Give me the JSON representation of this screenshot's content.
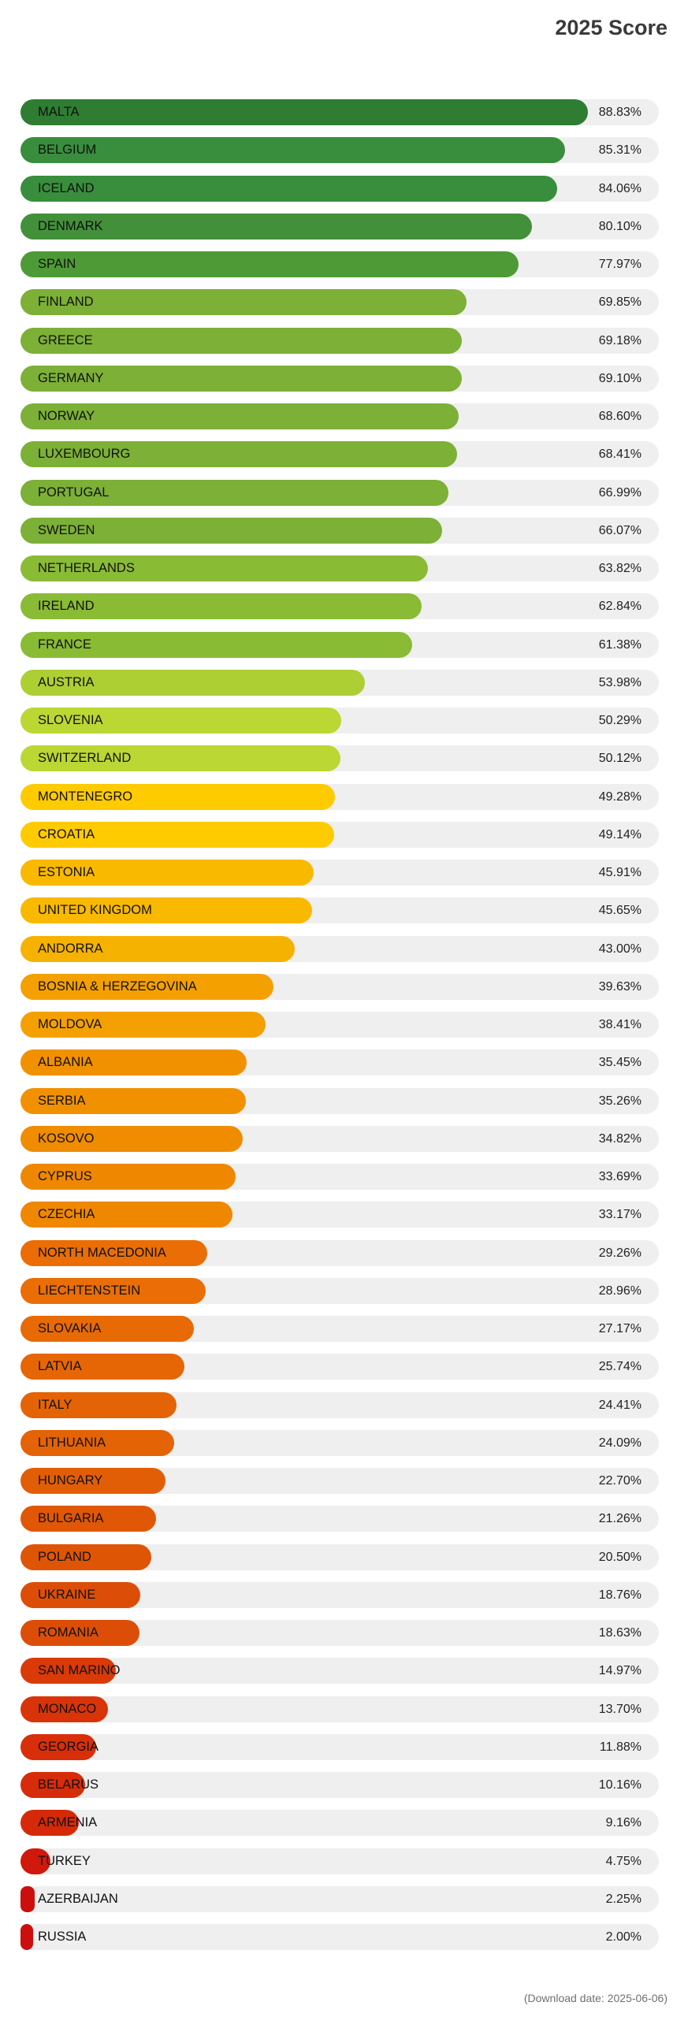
{
  "title": "2025 Score",
  "footnote": "(Download date: 2025-06-06)",
  "chart_data": {
    "type": "bar",
    "orientation": "horizontal",
    "title": "2025 Score",
    "xlim": [
      0,
      100
    ],
    "categories": [
      "MALTA",
      "BELGIUM",
      "ICELAND",
      "DENMARK",
      "SPAIN",
      "FINLAND",
      "GREECE",
      "GERMANY",
      "NORWAY",
      "LUXEMBOURG",
      "PORTUGAL",
      "SWEDEN",
      "NETHERLANDS",
      "IRELAND",
      "FRANCE",
      "AUSTRIA",
      "SLOVENIA",
      "SWITZERLAND",
      "MONTENEGRO",
      "CROATIA",
      "ESTONIA",
      "UNITED KINGDOM",
      "ANDORRA",
      "BOSNIA & HERZEGOVINA",
      "MOLDOVA",
      "ALBANIA",
      "SERBIA",
      "KOSOVO",
      "CYPRUS",
      "CZECHIA",
      "NORTH MACEDONIA",
      "LIECHTENSTEIN",
      "SLOVAKIA",
      "LATVIA",
      "ITALY",
      "LITHUANIA",
      "HUNGARY",
      "BULGARIA",
      "POLAND",
      "UKRAINE",
      "ROMANIA",
      "SAN MARINO",
      "MONACO",
      "GEORGIA",
      "BELARUS",
      "ARMENIA",
      "TURKEY",
      "AZERBAIJAN",
      "RUSSIA"
    ],
    "values": [
      88.83,
      85.31,
      84.06,
      80.1,
      77.97,
      69.85,
      69.18,
      69.1,
      68.6,
      68.41,
      66.99,
      66.07,
      63.82,
      62.84,
      61.38,
      53.98,
      50.29,
      50.12,
      49.28,
      49.14,
      45.91,
      45.65,
      43.0,
      39.63,
      38.41,
      35.45,
      35.26,
      34.82,
      33.69,
      33.17,
      29.26,
      28.96,
      27.17,
      25.74,
      24.41,
      24.09,
      22.7,
      21.26,
      20.5,
      18.76,
      18.63,
      14.97,
      13.7,
      11.88,
      10.16,
      9.16,
      4.75,
      2.25,
      2.0
    ],
    "value_labels": [
      "88.83%",
      "85.31%",
      "84.06%",
      "80.10%",
      "77.97%",
      "69.85%",
      "69.18%",
      "69.10%",
      "68.60%",
      "68.41%",
      "66.99%",
      "66.07%",
      "63.82%",
      "62.84%",
      "61.38%",
      "53.98%",
      "50.29%",
      "50.12%",
      "49.28%",
      "49.14%",
      "45.91%",
      "45.65%",
      "43.00%",
      "39.63%",
      "38.41%",
      "35.45%",
      "35.26%",
      "34.82%",
      "33.69%",
      "33.17%",
      "29.26%",
      "28.96%",
      "27.17%",
      "25.74%",
      "24.41%",
      "24.09%",
      "22.70%",
      "21.26%",
      "20.50%",
      "18.76%",
      "18.63%",
      "14.97%",
      "13.70%",
      "11.88%",
      "10.16%",
      "9.16%",
      "4.75%",
      "2.25%",
      "2.00%"
    ],
    "colors": [
      "#2e7d32",
      "#388e3c",
      "#388e3c",
      "#43903a",
      "#4e9a36",
      "#7cb036",
      "#7cb036",
      "#7cb036",
      "#7cb036",
      "#7cb036",
      "#7cb036",
      "#7cb036",
      "#8abb35",
      "#8abb35",
      "#8abb35",
      "#aecf33",
      "#bbd733",
      "#bbd733",
      "#fecb00",
      "#fecb00",
      "#f8b900",
      "#f8b900",
      "#f6b200",
      "#f4a000",
      "#f4a000",
      "#f29100",
      "#f29100",
      "#f08c00",
      "#ef8800",
      "#ef8800",
      "#ea6e05",
      "#ea6e05",
      "#e86a05",
      "#e66605",
      "#e46305",
      "#e46305",
      "#e25e06",
      "#e05706",
      "#df5506",
      "#dc4e07",
      "#dc4e07",
      "#da3a08",
      "#d93409",
      "#d82f0a",
      "#d72c0a",
      "#d52a0a",
      "#d0180c",
      "#cc0f0d",
      "#cc0f0d"
    ],
    "track_color": "#efefef",
    "grid": false,
    "legend": "none"
  }
}
